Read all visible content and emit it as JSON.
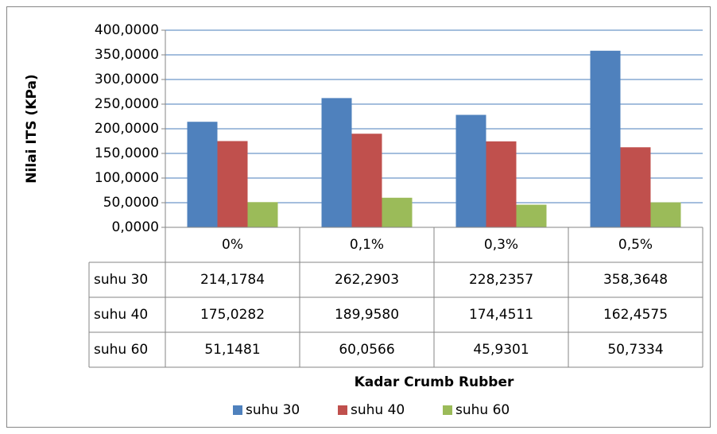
{
  "chart_data": {
    "type": "bar",
    "y_label": "Nilai ITS (KPa)",
    "x_label": "Kadar Crumb Rubber",
    "categories": [
      "0%",
      "0,1%",
      "0,3%",
      "0,5%"
    ],
    "series": [
      {
        "name": "suhu 30",
        "color": "#4f81bd",
        "values": [
          214.1784,
          262.2903,
          228.2357,
          358.3648
        ],
        "value_labels": [
          "214,1784",
          "262,2903",
          "228,2357",
          "358,3648"
        ]
      },
      {
        "name": "suhu 40",
        "color": "#c0504d",
        "values": [
          175.0282,
          189.958,
          174.4511,
          162.4575
        ],
        "value_labels": [
          "175,0282",
          "189,9580",
          "174,4511",
          "162,4575"
        ]
      },
      {
        "name": "suhu 60",
        "color": "#9bbb59",
        "values": [
          51.1481,
          60.0566,
          45.9301,
          50.7334
        ],
        "value_labels": [
          "51,1481",
          "60,0566",
          "45,9301",
          "50,7334"
        ]
      }
    ],
    "ylim": [
      0,
      400
    ],
    "yticks": [
      {
        "value": 0,
        "label": "0,0000"
      },
      {
        "value": 50,
        "label": "50,0000"
      },
      {
        "value": 100,
        "label": "100,0000"
      },
      {
        "value": 150,
        "label": "150,0000"
      },
      {
        "value": 200,
        "label": "200,0000"
      },
      {
        "value": 250,
        "label": "250,0000"
      },
      {
        "value": 300,
        "label": "300,0000"
      },
      {
        "value": 350,
        "label": "350,0000"
      },
      {
        "value": 400,
        "label": "400,0000"
      }
    ],
    "grid": true,
    "legend": "bottom"
  }
}
